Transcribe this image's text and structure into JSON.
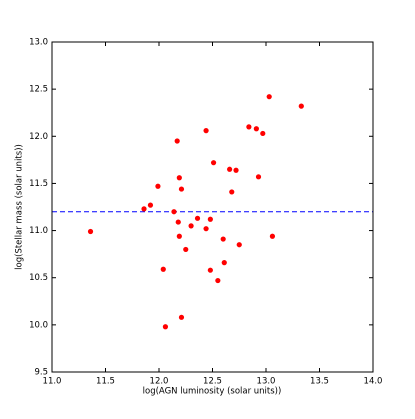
{
  "chart_data": {
    "type": "scatter",
    "xlabel": "log(AGN luminosity (solar units))",
    "ylabel": "log(Stellar mass (solar units))",
    "x": [
      11.36,
      11.86,
      11.92,
      11.99,
      12.04,
      12.06,
      12.14,
      12.17,
      12.19,
      12.21,
      12.18,
      12.19,
      12.21,
      12.25,
      12.3,
      12.36,
      12.44,
      12.44,
      12.48,
      12.48,
      12.51,
      12.55,
      12.6,
      12.61,
      12.66,
      12.68,
      12.72,
      12.75,
      12.84,
      12.91,
      12.93,
      12.97,
      13.03,
      13.06,
      13.33
    ],
    "values": [
      10.99,
      11.23,
      11.27,
      11.47,
      10.59,
      9.98,
      11.2,
      11.95,
      11.56,
      11.44,
      11.09,
      10.94,
      10.08,
      10.8,
      11.05,
      11.13,
      12.06,
      11.02,
      11.12,
      10.58,
      11.72,
      10.47,
      10.91,
      10.66,
      11.65,
      11.41,
      11.64,
      10.85,
      12.1,
      12.08,
      11.57,
      12.03,
      12.42,
      10.94,
      12.32
    ],
    "color": "#ff0000",
    "hline": {
      "value": 11.2,
      "color": "#0000ff",
      "style": "dashed"
    },
    "xlim": [
      11.0,
      14.0
    ],
    "xticks": [
      {
        "value": 11,
        "label": "11.0"
      },
      11.5,
      {
        "value": 12,
        "label": "12.0"
      },
      12.5,
      {
        "value": 13,
        "label": "13.0"
      },
      13.5,
      {
        "value": 14,
        "label": "14.0"
      }
    ],
    "ylim": [
      9.5,
      13.0
    ],
    "yticks": [
      9.5,
      {
        "value": 10,
        "label": "10.0"
      },
      10.5,
      {
        "value": 11,
        "label": "11.0"
      },
      11.5,
      {
        "value": 12,
        "label": "12.0"
      },
      12.5,
      {
        "value": 13,
        "label": "13.0"
      }
    ]
  }
}
